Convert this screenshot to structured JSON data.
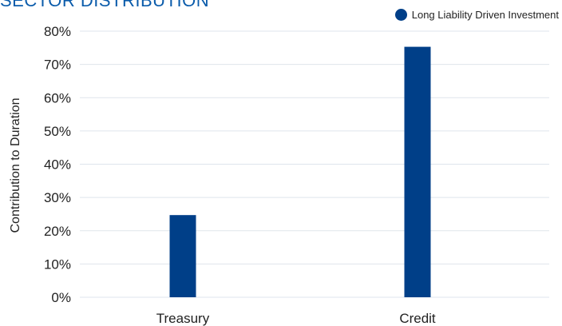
{
  "title": "SECTOR DISTRIBUTION",
  "colors": {
    "accent": "#0b5cab",
    "bar": "#003f88",
    "grid": "#dfe5ec"
  },
  "chart_data": {
    "type": "bar",
    "title": "SECTOR DISTRIBUTION",
    "categories": [
      "Treasury",
      "Credit"
    ],
    "series": [
      {
        "name": "Long Liability Driven Investment",
        "values": [
          24.7,
          75.3
        ]
      }
    ],
    "xlabel": "",
    "ylabel": "Contribution to Duration",
    "ylim": [
      0,
      80
    ],
    "yticks": [
      0,
      10,
      20,
      30,
      40,
      50,
      60,
      70,
      80
    ],
    "ytick_labels": [
      "0%",
      "10%",
      "20%",
      "30%",
      "40%",
      "50%",
      "60%",
      "70%",
      "80%"
    ],
    "grid": true,
    "legend": "top-right"
  }
}
